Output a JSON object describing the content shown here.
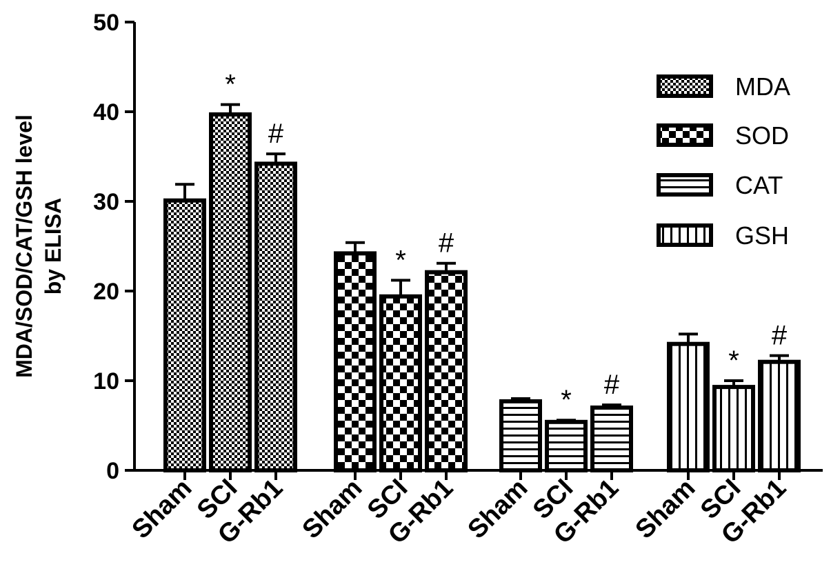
{
  "chart_data": {
    "type": "bar",
    "ylabel": [
      "MDA/SOD/CAT/GSH level",
      "by ELISA"
    ],
    "ylim": [
      0,
      50
    ],
    "yticks": [
      0,
      10,
      20,
      30,
      40,
      50
    ],
    "legend_position": "top-right",
    "groups": [
      {
        "name": "MDA",
        "pattern": "fine-checker",
        "bars": [
          {
            "category": "Sham",
            "value": 30.1,
            "error": 1.8,
            "mark": ""
          },
          {
            "category": "SCI",
            "value": 39.7,
            "error": 1.1,
            "mark": "*"
          },
          {
            "category": "G-Rb1",
            "value": 34.2,
            "error": 1.1,
            "mark": "#"
          }
        ]
      },
      {
        "name": "SOD",
        "pattern": "coarse-checker",
        "bars": [
          {
            "category": "Sham",
            "value": 24.2,
            "error": 1.2,
            "mark": ""
          },
          {
            "category": "SCI",
            "value": 19.4,
            "error": 1.8,
            "mark": "*"
          },
          {
            "category": "G-Rb1",
            "value": 22.1,
            "error": 1.0,
            "mark": "#"
          }
        ]
      },
      {
        "name": "CAT",
        "pattern": "horizontal-stripes",
        "bars": [
          {
            "category": "Sham",
            "value": 7.7,
            "error": 0.3,
            "mark": ""
          },
          {
            "category": "SCI",
            "value": 5.4,
            "error": 0.2,
            "mark": "*"
          },
          {
            "category": "G-Rb1",
            "value": 7.0,
            "error": 0.3,
            "mark": "#"
          }
        ]
      },
      {
        "name": "GSH",
        "pattern": "vertical-stripes",
        "bars": [
          {
            "category": "Sham",
            "value": 14.1,
            "error": 1.1,
            "mark": ""
          },
          {
            "category": "SCI",
            "value": 9.3,
            "error": 0.7,
            "mark": "*"
          },
          {
            "category": "G-Rb1",
            "value": 12.1,
            "error": 0.7,
            "mark": "#"
          }
        ]
      }
    ],
    "legend": [
      "MDA",
      "SOD",
      "CAT",
      "GSH"
    ]
  }
}
